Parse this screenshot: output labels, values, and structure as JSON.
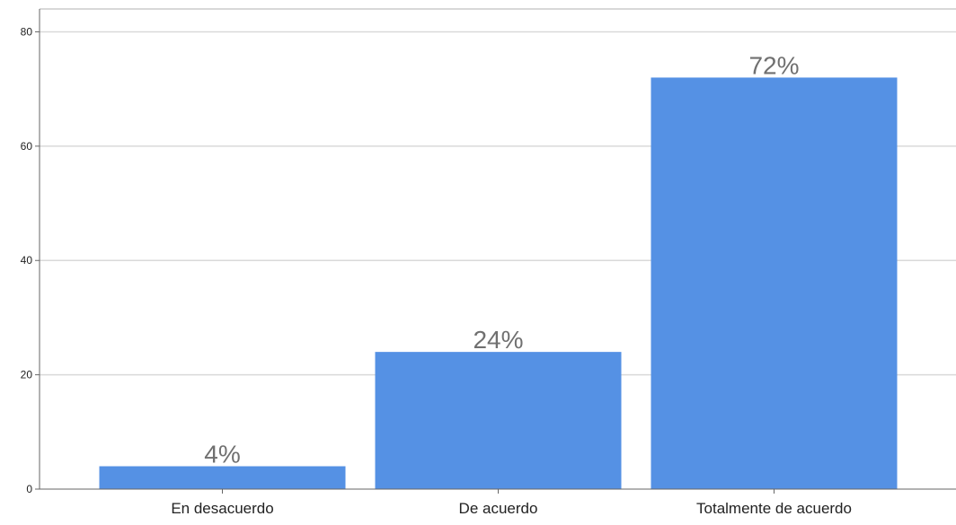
{
  "chart_data": {
    "type": "bar",
    "categories": [
      "En desacuerdo",
      "De acuerdo",
      "Totalmente de acuerdo"
    ],
    "values": [
      4,
      24,
      72
    ],
    "data_labels": [
      "4%",
      "24%",
      "72%"
    ],
    "ylim": [
      0,
      84
    ],
    "yticks": [
      0,
      20,
      40,
      60,
      80
    ],
    "ytick_labels": [
      "0",
      "20",
      "40",
      "60",
      "80"
    ],
    "title": "",
    "xlabel": "",
    "ylabel": "",
    "grid": true,
    "legend": "none",
    "colors": {
      "bar": "#5591e4",
      "grid": "#d9d9d9",
      "axis": "#666666",
      "label": "#707070"
    }
  }
}
